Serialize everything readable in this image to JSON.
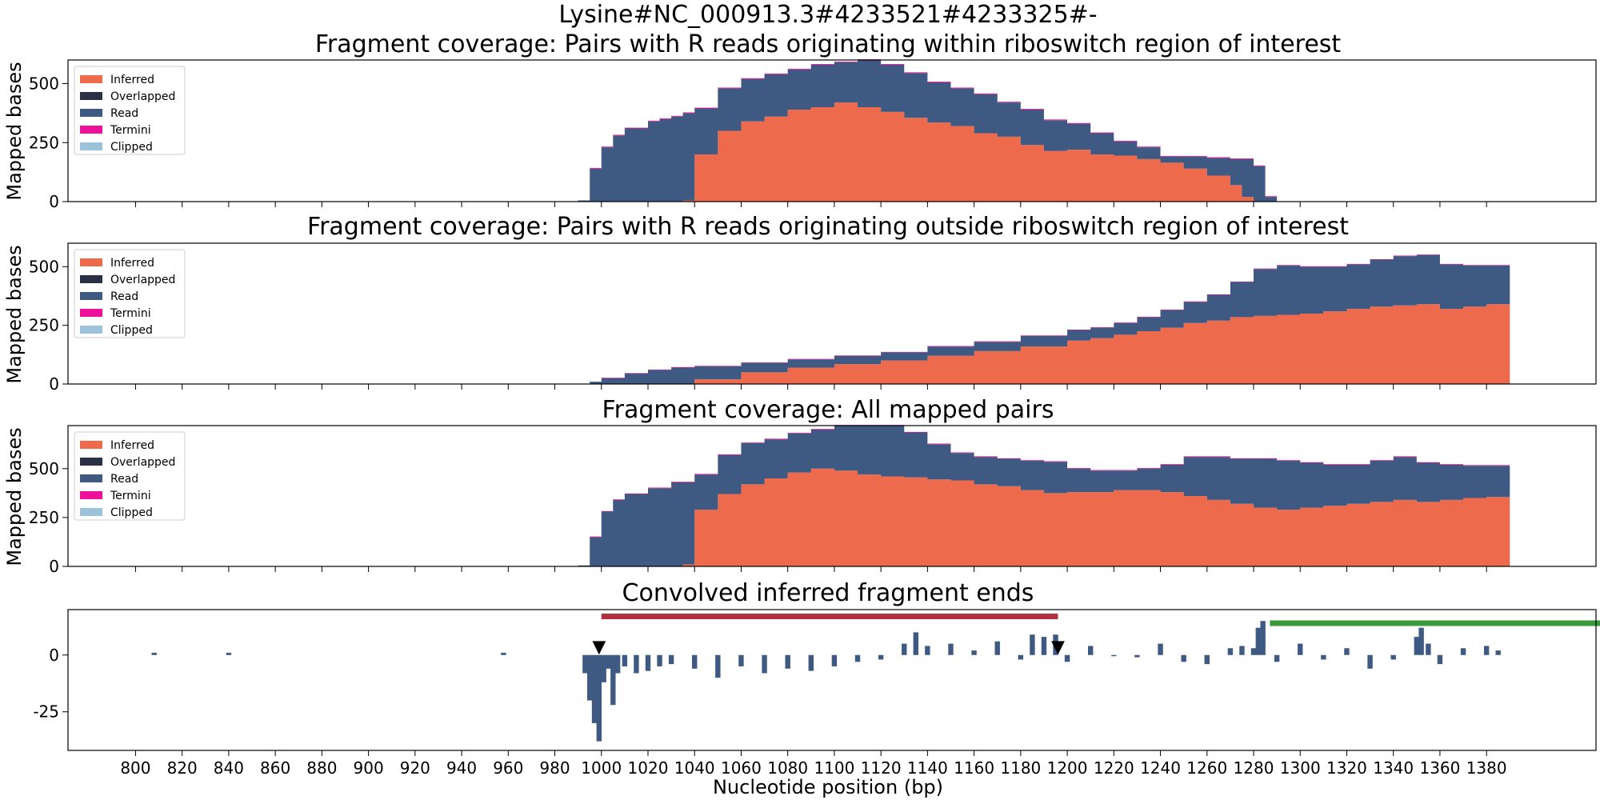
{
  "figure": {
    "suptitle": "Lysine#NC_000913.3#4233521#4233325#-"
  },
  "colors": {
    "inferred": "#EE6A4D",
    "overlapped": "#2A3145",
    "read": "#3E5A83",
    "termini": "#EE1199",
    "clipped": "#9CC3DA",
    "bar_red": "#B03040",
    "bar_green": "#3A9A3A",
    "conv": "#3E5A83"
  },
  "legend": [
    "Inferred",
    "Overlapped",
    "Read",
    "Termini",
    "Clipped"
  ],
  "chart_data": [
    {
      "type": "area",
      "title": "Fragment coverage: Pairs with R reads originating within riboswitch region of interest",
      "ylabel": "Mapped bases",
      "xlim": [
        771,
        1427
      ],
      "ylim": [
        0,
        600
      ],
      "yticks": [
        0,
        250,
        500
      ],
      "legend_position": "upper-left",
      "x": [
        990,
        995,
        1000,
        1005,
        1010,
        1020,
        1025,
        1030,
        1035,
        1040,
        1050,
        1060,
        1070,
        1080,
        1090,
        1100,
        1110,
        1120,
        1130,
        1140,
        1150,
        1160,
        1170,
        1180,
        1190,
        1200,
        1210,
        1220,
        1230,
        1240,
        1250,
        1260,
        1270,
        1275,
        1280,
        1285,
        1290
      ],
      "series": [
        {
          "name": "Inferred",
          "values": [
            0,
            0,
            0,
            0,
            0,
            0,
            0,
            0,
            5,
            200,
            300,
            340,
            360,
            390,
            400,
            420,
            400,
            380,
            355,
            335,
            320,
            290,
            275,
            240,
            215,
            220,
            200,
            195,
            180,
            165,
            140,
            110,
            70,
            20,
            0,
            0,
            0
          ]
        },
        {
          "name": "Overlapped",
          "values": [
            0,
            0,
            0,
            0,
            0,
            0,
            0,
            0,
            0,
            0,
            0,
            0,
            0,
            0,
            0,
            0,
            0,
            0,
            0,
            0,
            0,
            0,
            0,
            0,
            0,
            0,
            0,
            0,
            0,
            0,
            0,
            0,
            0,
            0,
            0,
            0,
            0
          ]
        },
        {
          "name": "Read",
          "values": [
            5,
            140,
            230,
            280,
            310,
            340,
            350,
            360,
            370,
            195,
            180,
            180,
            180,
            170,
            180,
            170,
            200,
            200,
            190,
            170,
            160,
            165,
            145,
            150,
            130,
            110,
            90,
            60,
            50,
            25,
            50,
            75,
            110,
            160,
            150,
            20,
            5
          ]
        },
        {
          "name": "Termini",
          "values": [
            0,
            3,
            3,
            3,
            3,
            3,
            3,
            3,
            3,
            3,
            3,
            3,
            3,
            3,
            3,
            3,
            3,
            3,
            3,
            3,
            3,
            3,
            3,
            3,
            3,
            3,
            3,
            3,
            3,
            3,
            3,
            3,
            3,
            3,
            3,
            3,
            0
          ]
        },
        {
          "name": "Clipped",
          "values": [
            0,
            0,
            0,
            0,
            0,
            0,
            0,
            0,
            0,
            0,
            0,
            0,
            0,
            0,
            0,
            0,
            0,
            0,
            0,
            0,
            0,
            0,
            0,
            0,
            0,
            0,
            0,
            0,
            0,
            0,
            0,
            0,
            0,
            0,
            0,
            0,
            0
          ]
        }
      ]
    },
    {
      "type": "area",
      "title": "Fragment coverage: Pairs with R reads originating outside riboswitch region of interest",
      "ylabel": "Mapped bases",
      "xlim": [
        771,
        1427
      ],
      "ylim": [
        0,
        600
      ],
      "yticks": [
        0,
        250,
        500
      ],
      "legend_position": "upper-left",
      "x": [
        995,
        1000,
        1010,
        1020,
        1030,
        1040,
        1060,
        1080,
        1100,
        1120,
        1140,
        1160,
        1180,
        1200,
        1210,
        1220,
        1230,
        1240,
        1250,
        1260,
        1270,
        1280,
        1290,
        1300,
        1310,
        1320,
        1330,
        1340,
        1350,
        1360,
        1370,
        1380,
        1390
      ],
      "series": [
        {
          "name": "Inferred",
          "values": [
            0,
            0,
            0,
            0,
            0,
            20,
            50,
            70,
            85,
            100,
            120,
            140,
            160,
            185,
            195,
            210,
            225,
            240,
            260,
            270,
            285,
            290,
            295,
            300,
            310,
            320,
            330,
            335,
            340,
            320,
            330,
            340,
            360
          ]
        },
        {
          "name": "Overlapped",
          "values": [
            0,
            0,
            0,
            0,
            0,
            0,
            0,
            0,
            0,
            0,
            0,
            0,
            0,
            0,
            0,
            0,
            0,
            0,
            0,
            0,
            0,
            0,
            0,
            0,
            0,
            0,
            0,
            0,
            0,
            0,
            0,
            0,
            0
          ]
        },
        {
          "name": "Read",
          "values": [
            10,
            25,
            45,
            60,
            70,
            55,
            40,
            35,
            35,
            35,
            40,
            40,
            45,
            45,
            45,
            50,
            60,
            75,
            90,
            110,
            150,
            200,
            210,
            200,
            190,
            190,
            200,
            210,
            210,
            190,
            175,
            165,
            135
          ]
        },
        {
          "name": "Termini",
          "values": [
            0,
            2,
            2,
            2,
            2,
            2,
            2,
            2,
            2,
            2,
            2,
            2,
            2,
            2,
            2,
            2,
            2,
            2,
            2,
            2,
            2,
            2,
            2,
            2,
            2,
            2,
            2,
            2,
            2,
            2,
            2,
            2,
            2
          ]
        },
        {
          "name": "Clipped",
          "values": [
            0,
            0,
            0,
            0,
            0,
            0,
            0,
            0,
            0,
            0,
            0,
            0,
            0,
            0,
            0,
            0,
            0,
            0,
            0,
            0,
            0,
            0,
            0,
            0,
            0,
            0,
            0,
            0,
            0,
            0,
            0,
            0,
            0
          ]
        }
      ]
    },
    {
      "type": "area",
      "title": "Fragment coverage: All mapped pairs",
      "ylabel": "Mapped bases",
      "xlim": [
        771,
        1427
      ],
      "ylim": [
        0,
        720
      ],
      "yticks": [
        0,
        250,
        500
      ],
      "legend_position": "upper-left",
      "x": [
        990,
        995,
        1000,
        1005,
        1010,
        1020,
        1030,
        1035,
        1040,
        1050,
        1060,
        1070,
        1080,
        1090,
        1100,
        1110,
        1120,
        1130,
        1140,
        1150,
        1160,
        1170,
        1180,
        1190,
        1200,
        1210,
        1220,
        1230,
        1240,
        1250,
        1260,
        1270,
        1280,
        1290,
        1300,
        1310,
        1320,
        1330,
        1340,
        1350,
        1360,
        1370,
        1380,
        1390
      ],
      "series": [
        {
          "name": "Inferred",
          "values": [
            0,
            0,
            0,
            0,
            0,
            0,
            0,
            10,
            290,
            370,
            420,
            450,
            480,
            500,
            490,
            470,
            460,
            455,
            445,
            440,
            420,
            410,
            390,
            375,
            380,
            380,
            390,
            390,
            380,
            360,
            340,
            320,
            300,
            290,
            300,
            310,
            320,
            330,
            340,
            330,
            340,
            350,
            355,
            360
          ]
        },
        {
          "name": "Overlapped",
          "values": [
            0,
            0,
            0,
            0,
            0,
            0,
            0,
            0,
            0,
            0,
            0,
            0,
            0,
            0,
            0,
            0,
            0,
            0,
            0,
            0,
            0,
            0,
            0,
            0,
            0,
            0,
            0,
            0,
            0,
            0,
            0,
            0,
            0,
            0,
            0,
            0,
            0,
            0,
            0,
            0,
            0,
            0,
            0,
            0
          ]
        },
        {
          "name": "Read",
          "values": [
            5,
            150,
            280,
            340,
            370,
            400,
            430,
            420,
            180,
            200,
            210,
            200,
            200,
            200,
            230,
            250,
            260,
            230,
            180,
            140,
            140,
            140,
            150,
            160,
            120,
            110,
            100,
            110,
            140,
            200,
            220,
            230,
            250,
            250,
            230,
            210,
            200,
            210,
            220,
            200,
            180,
            165,
            160,
            130
          ]
        },
        {
          "name": "Termini",
          "values": [
            0,
            3,
            3,
            3,
            3,
            3,
            3,
            3,
            3,
            3,
            3,
            3,
            3,
            3,
            3,
            3,
            3,
            3,
            3,
            3,
            3,
            3,
            3,
            3,
            3,
            3,
            3,
            3,
            3,
            3,
            3,
            3,
            3,
            3,
            3,
            3,
            3,
            3,
            3,
            3,
            3,
            3,
            3,
            3
          ]
        },
        {
          "name": "Clipped",
          "values": [
            0,
            0,
            0,
            0,
            0,
            0,
            0,
            0,
            0,
            0,
            0,
            0,
            0,
            0,
            0,
            0,
            0,
            0,
            0,
            0,
            0,
            0,
            0,
            0,
            0,
            0,
            0,
            0,
            0,
            0,
            0,
            0,
            0,
            0,
            0,
            0,
            0,
            0,
            0,
            0,
            0,
            0,
            0,
            0
          ]
        }
      ]
    },
    {
      "type": "bar",
      "title": "Convolved inferred fragment ends",
      "xlabel": "Nucleotide position (bp)",
      "xlim": [
        771,
        1427
      ],
      "ylim": [
        -42,
        20
      ],
      "yticks": [
        -25,
        0
      ],
      "xticks": [
        800,
        820,
        840,
        860,
        880,
        900,
        920,
        940,
        960,
        980,
        1000,
        1020,
        1040,
        1060,
        1080,
        1100,
        1120,
        1140,
        1160,
        1180,
        1200,
        1220,
        1240,
        1260,
        1280,
        1300,
        1320,
        1340,
        1360,
        1380
      ],
      "x": [
        808,
        840,
        958,
        993,
        995,
        997,
        999,
        1001,
        1003,
        1005,
        1007,
        1010,
        1015,
        1020,
        1025,
        1030,
        1040,
        1050,
        1060,
        1070,
        1080,
        1090,
        1100,
        1110,
        1120,
        1130,
        1135,
        1140,
        1150,
        1160,
        1170,
        1180,
        1185,
        1190,
        1195,
        1200,
        1210,
        1220,
        1230,
        1240,
        1250,
        1260,
        1270,
        1275,
        1280,
        1282,
        1284,
        1290,
        1300,
        1310,
        1320,
        1330,
        1340,
        1350,
        1352,
        1355,
        1360,
        1370,
        1380,
        1385
      ],
      "values": [
        1,
        1,
        1,
        -8,
        -20,
        -30,
        -38,
        -12,
        -6,
        -22,
        -8,
        -5,
        -8,
        -7,
        -5,
        -4,
        -6,
        -10,
        -5,
        -8,
        -6,
        -7,
        -5,
        -3,
        -2,
        5,
        10,
        4,
        5,
        2,
        6,
        -2,
        9,
        8,
        9,
        -3,
        4,
        0,
        -1,
        5,
        -3,
        -4,
        3,
        4,
        3,
        12,
        15,
        -3,
        5,
        -2,
        3,
        -6,
        -2,
        8,
        12,
        5,
        -4,
        3,
        4,
        2
      ],
      "markers": [
        {
          "label": "▼",
          "x": 999,
          "y": 4
        },
        {
          "label": "▼",
          "x": 1196,
          "y": 4
        }
      ],
      "ranges": [
        {
          "x": [
            1000,
            1196
          ],
          "y": 17,
          "color": "bar_red"
        },
        {
          "x": [
            1287,
            1430
          ],
          "y": 14,
          "color": "bar_green"
        }
      ]
    }
  ]
}
